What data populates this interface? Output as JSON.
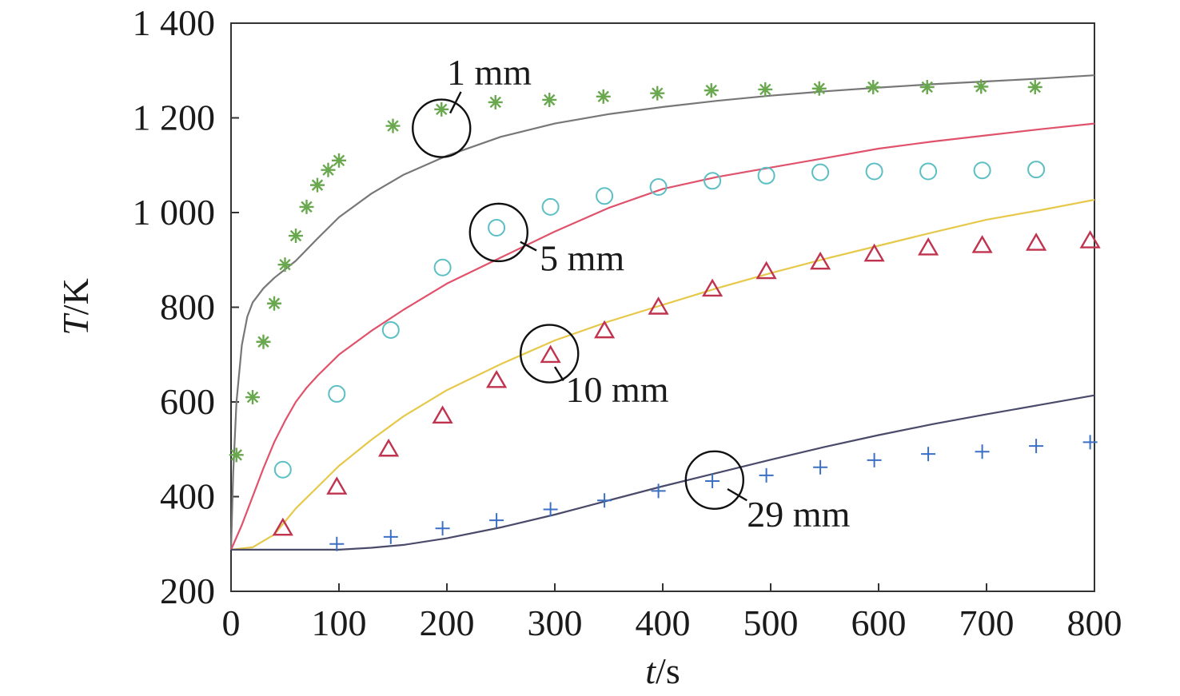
{
  "chart_data": {
    "type": "line",
    "title": "",
    "xlabel_var": "t",
    "xlabel_unit": "/s",
    "ylabel_var": "T",
    "ylabel_unit": "/K",
    "xlim": [
      0,
      800
    ],
    "ylim": [
      200,
      1400
    ],
    "xticks": [
      0,
      100,
      200,
      300,
      400,
      500,
      600,
      700,
      800
    ],
    "yticks": [
      200,
      400,
      600,
      800,
      1000,
      1200,
      1400
    ],
    "xtick_labels": [
      "0",
      "100",
      "200",
      "300",
      "400",
      "500",
      "600",
      "700",
      "800"
    ],
    "ytick_labels": [
      "200",
      "400",
      "600",
      "800",
      "1 000",
      "1 200",
      "1 400"
    ],
    "grid": false,
    "series": [
      {
        "name": "1 mm",
        "kind": "simulated",
        "color": "#777777",
        "x": [
          0,
          2,
          5,
          10,
          15,
          20,
          30,
          40,
          50,
          60,
          80,
          100,
          130,
          160,
          200,
          250,
          300,
          350,
          400,
          450,
          500,
          550,
          600,
          650,
          700,
          750,
          800
        ],
        "y": [
          288,
          450,
          600,
          720,
          780,
          810,
          840,
          862,
          880,
          898,
          945,
          990,
          1040,
          1080,
          1120,
          1160,
          1188,
          1208,
          1223,
          1236,
          1247,
          1256,
          1264,
          1271,
          1277,
          1283,
          1290
        ]
      },
      {
        "name": "1 mm",
        "kind": "measured",
        "color": "#6aa84f",
        "marker": "asterisk",
        "x": [
          5,
          20,
          30,
          40,
          50,
          60,
          70,
          80,
          90,
          100,
          150,
          195,
          245,
          295,
          345,
          395,
          445,
          495,
          545,
          595,
          645,
          695,
          745
        ],
        "y": [
          488,
          610,
          727,
          808,
          890,
          951,
          1012,
          1058,
          1090,
          1110,
          1183,
          1218,
          1233,
          1238,
          1245,
          1252,
          1258,
          1260,
          1262,
          1265,
          1265,
          1266,
          1265
        ]
      },
      {
        "name": "5 mm",
        "kind": "simulated",
        "color": "#e0526b",
        "x": [
          0,
          10,
          20,
          30,
          40,
          50,
          60,
          70,
          80,
          100,
          130,
          160,
          200,
          250,
          300,
          350,
          400,
          450,
          500,
          550,
          600,
          650,
          700,
          750,
          800
        ],
        "y": [
          288,
          340,
          400,
          460,
          515,
          560,
          600,
          630,
          655,
          700,
          750,
          795,
          850,
          905,
          960,
          1010,
          1050,
          1075,
          1095,
          1115,
          1135,
          1150,
          1163,
          1176,
          1188
        ]
      },
      {
        "name": "5 mm",
        "kind": "measured",
        "color": "#5bbfc4",
        "marker": "circle",
        "x": [
          48,
          98,
          148,
          196,
          246,
          296,
          346,
          396,
          446,
          496,
          546,
          596,
          646,
          696,
          746
        ],
        "y": [
          457,
          617,
          752,
          884,
          968,
          1012,
          1035,
          1054,
          1067,
          1078,
          1085,
          1087,
          1087,
          1089,
          1091
        ]
      },
      {
        "name": "10 mm",
        "kind": "simulated",
        "color": "#e6c84a",
        "x": [
          0,
          20,
          40,
          60,
          80,
          100,
          130,
          160,
          200,
          250,
          300,
          350,
          400,
          450,
          500,
          550,
          600,
          650,
          700,
          750,
          800
        ],
        "y": [
          288,
          293,
          320,
          375,
          420,
          465,
          520,
          570,
          625,
          680,
          730,
          770,
          805,
          840,
          872,
          902,
          930,
          958,
          985,
          1005,
          1027
        ]
      },
      {
        "name": "10 mm",
        "kind": "measured",
        "color": "#c0334f",
        "marker": "triangle",
        "x": [
          48,
          98,
          146,
          196,
          246,
          296,
          346,
          396,
          446,
          496,
          546,
          596,
          646,
          696,
          746,
          796
        ],
        "y": [
          333,
          420,
          500,
          570,
          645,
          698,
          750,
          800,
          838,
          875,
          895,
          912,
          925,
          930,
          935,
          940
        ]
      },
      {
        "name": "29 mm",
        "kind": "simulated",
        "color": "#4a4a6a",
        "x": [
          0,
          50,
          100,
          130,
          160,
          200,
          250,
          300,
          350,
          400,
          450,
          500,
          550,
          600,
          650,
          700,
          750,
          800
        ],
        "y": [
          288,
          288,
          288,
          292,
          298,
          312,
          335,
          362,
          392,
          422,
          450,
          478,
          505,
          530,
          553,
          574,
          594,
          614
        ]
      },
      {
        "name": "29 mm",
        "kind": "measured",
        "color": "#3b6fc4",
        "marker": "plus",
        "x": [
          98,
          148,
          196,
          246,
          296,
          346,
          396,
          446,
          496,
          546,
          596,
          646,
          696,
          746,
          796
        ],
        "y": [
          300,
          315,
          333,
          350,
          373,
          392,
          412,
          433,
          445,
          462,
          477,
          490,
          495,
          507,
          515
        ]
      }
    ],
    "annotations": [
      {
        "label": "1 mm",
        "circle_at": [
          195,
          1178
        ],
        "line_from": [
          203,
          1210
        ],
        "line_to": [
          213,
          1255
        ],
        "text_at": [
          200,
          1295
        ],
        "anchor": "start"
      },
      {
        "label": "5 mm",
        "circle_at": [
          248,
          958
        ],
        "line_from": [
          268,
          938
        ],
        "line_to": [
          283,
          920
        ],
        "text_at": [
          286,
          903
        ],
        "anchor": "start"
      },
      {
        "label": "10 mm",
        "circle_at": [
          295,
          702
        ],
        "line_from": [
          300,
          674
        ],
        "line_to": [
          308,
          645
        ],
        "text_at": [
          310,
          625
        ],
        "anchor": "start"
      },
      {
        "label": "29 mm",
        "circle_at": [
          448,
          435
        ],
        "line_from": [
          460,
          416
        ],
        "line_to": [
          478,
          392
        ],
        "text_at": [
          478,
          362
        ],
        "anchor": "start"
      }
    ]
  }
}
